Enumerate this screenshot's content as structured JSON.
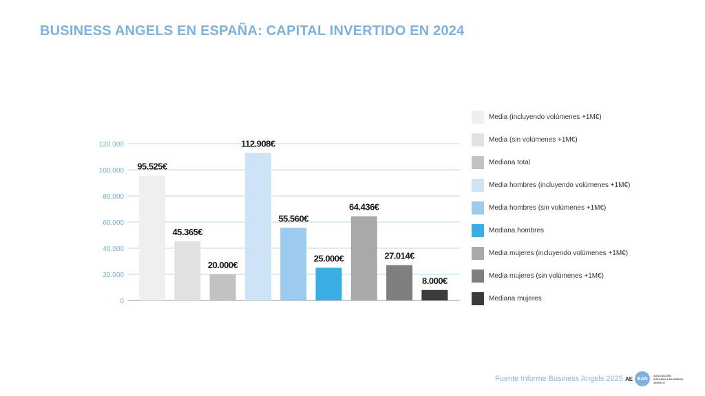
{
  "title": "BUSINESS ANGELS EN ESPAÑA: CAPITAL INVERTIDO EN 2024",
  "source": "Fuente Informe Business Angels 2025",
  "logo": {
    "letters": "AE",
    "circle_text": "BAN",
    "subtitle": "ASOCIACIÓN ESPAÑOLA BUSINESS ANGELS"
  },
  "chart_data": {
    "type": "bar",
    "title": "",
    "xlabel": "",
    "ylabel": "",
    "ylim": [
      0,
      120000
    ],
    "yticks": [
      0,
      20000,
      40000,
      60000,
      80000,
      100000,
      120000
    ],
    "ytick_labels": [
      "0",
      "20.000",
      "40.000",
      "60.000",
      "80.000",
      "100.000",
      "120.000"
    ],
    "grid": true,
    "legend_position": "right",
    "categories": [
      "Media (incluyendo volúmenes +1M€)",
      "Media (sin volúmenes +1M€)",
      "Mediana total",
      "Media hombres (incluyendo volúmenes +1M€)",
      "Media hombres (sin volúmenes +1M€)",
      "Mediana hombres",
      "Media mujeres (incluyendo volúmenes +1M€)",
      "Media mujeres (sin volúmenes +1M€)",
      "Mediana mujeres"
    ],
    "values": [
      95525,
      45365,
      20000,
      112908,
      55560,
      25000,
      64436,
      27014,
      8000
    ],
    "data_labels": [
      "95.525€",
      "45.365€",
      "20.000€",
      "112.908€",
      "55.560€",
      "25.000€",
      "64.436€",
      "27.014€",
      "8.000€"
    ],
    "colors": [
      "#efefef",
      "#e2e2e2",
      "#c2c2c2",
      "#cfe3f6",
      "#9ccbee",
      "#3aaee2",
      "#a9a9a9",
      "#7f7f7f",
      "#3d3b3a"
    ],
    "tick_color": "#6fb0d4",
    "grid_color": "#b5dbea"
  }
}
